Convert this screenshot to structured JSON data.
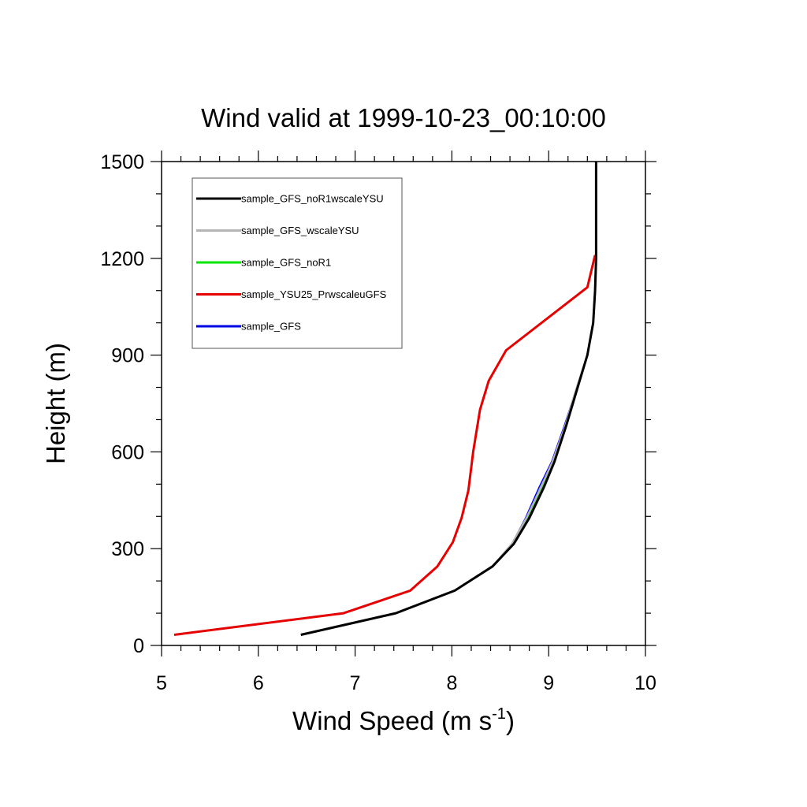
{
  "chart_data": {
    "type": "line",
    "title": "Wind valid at 1999-10-23_00:10:00",
    "xlabel": "Wind Speed (m s",
    "xlabel_superscript": "-1",
    "xlabel_suffix": ")",
    "ylabel": "Height (m)",
    "xlim": [
      5,
      10
    ],
    "ylim": [
      0,
      1500
    ],
    "xticks": [
      5,
      6,
      7,
      8,
      9,
      10
    ],
    "xtick_labels": [
      "5",
      "6",
      "7",
      "8",
      "9",
      "10"
    ],
    "yticks": [
      0,
      300,
      600,
      900,
      1200,
      1500
    ],
    "ytick_labels": [
      "0",
      "300",
      "600",
      "900",
      "1200",
      "1500"
    ],
    "grid": false,
    "legend_position": "top-left",
    "series": [
      {
        "name": "sample_GFS_noR1wscaleYSU",
        "color": "#000000",
        "x": [
          6.44,
          7.42,
          8.03,
          8.42,
          8.64,
          8.8,
          8.95,
          9.06,
          9.18,
          9.3,
          9.4,
          9.46,
          9.48,
          9.49,
          9.49
        ],
        "y": [
          33,
          100,
          170,
          245,
          315,
          395,
          490,
          570,
          680,
          800,
          900,
          1000,
          1100,
          1200,
          1500
        ]
      },
      {
        "name": "sample_GFS_wscaleYSU",
        "color": "#b4b4b4",
        "x": [
          6.44,
          7.42,
          8.03,
          8.42,
          8.62,
          8.77,
          8.92,
          9.04,
          9.17,
          9.29,
          9.4,
          9.46,
          9.48,
          9.49,
          9.49
        ],
        "y": [
          33,
          100,
          170,
          245,
          315,
          395,
          490,
          570,
          680,
          800,
          900,
          1000,
          1100,
          1200,
          1500
        ]
      },
      {
        "name": "sample_GFS_noR1",
        "color": "#00e600",
        "x": [
          6.44,
          7.42,
          8.03,
          8.42,
          8.63,
          8.78,
          8.93,
          9.05,
          9.18,
          9.3,
          9.4,
          9.46,
          9.48,
          9.49,
          9.49
        ],
        "y": [
          33,
          100,
          170,
          245,
          315,
          395,
          490,
          570,
          680,
          800,
          900,
          1000,
          1100,
          1200,
          1500
        ]
      },
      {
        "name": "sample_YSU25_PrwscaleuGFS",
        "color": "#e60000",
        "x": [
          5.13,
          6.88,
          7.57,
          7.85,
          8.01,
          8.1,
          8.17,
          8.22,
          8.29,
          8.38,
          8.56,
          9.4,
          9.48
        ],
        "y": [
          33,
          100,
          170,
          245,
          320,
          395,
          480,
          600,
          730,
          820,
          915,
          1110,
          1210
        ]
      },
      {
        "name": "sample_GFS",
        "color": "#0000e6",
        "x": [
          6.44,
          7.42,
          8.03,
          8.42,
          8.62,
          8.76,
          8.9,
          9.03,
          9.16,
          9.29,
          9.4,
          9.46,
          9.48,
          9.49,
          9.49
        ],
        "y": [
          33,
          100,
          170,
          245,
          315,
          395,
          490,
          570,
          680,
          800,
          900,
          1000,
          1100,
          1200,
          1500
        ]
      }
    ]
  }
}
